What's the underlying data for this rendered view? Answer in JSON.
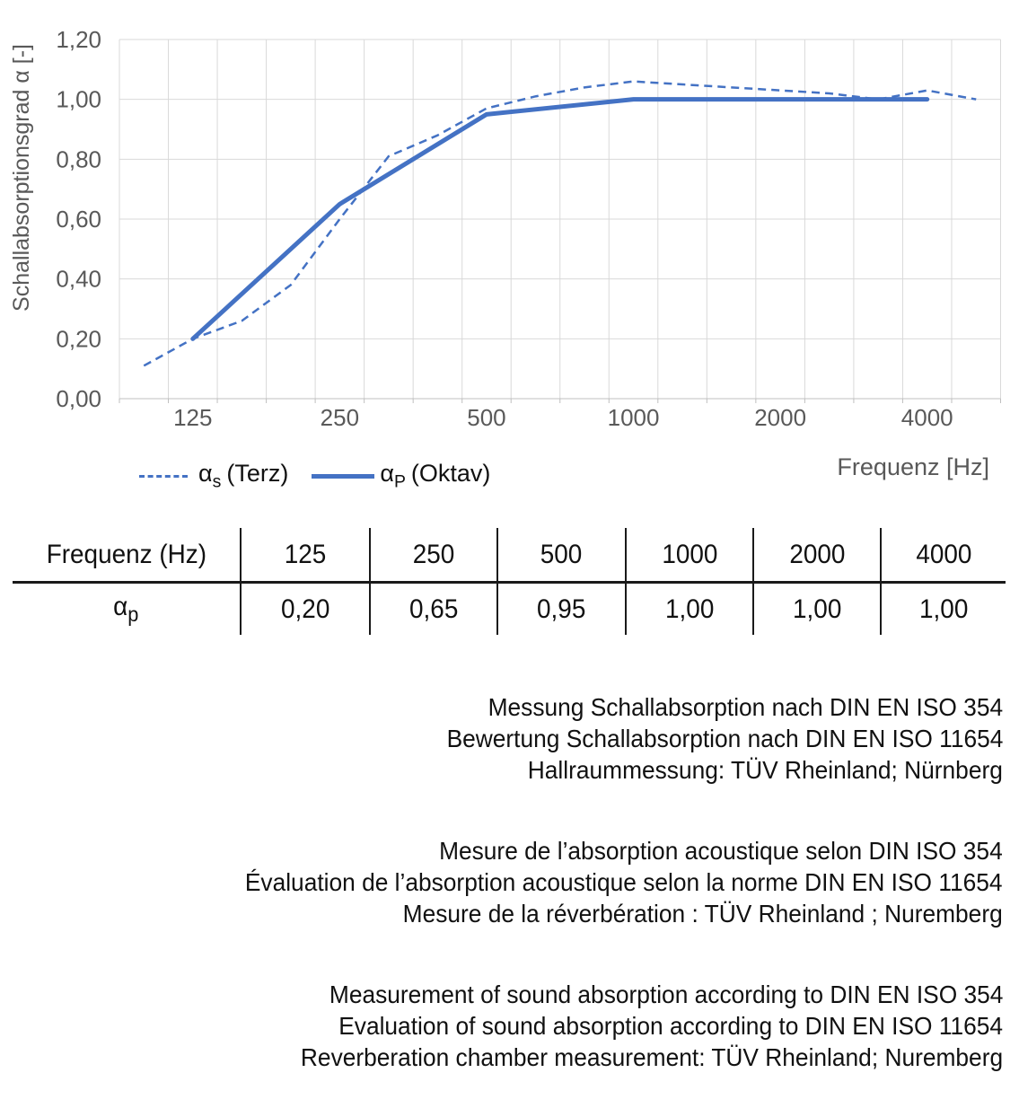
{
  "chart_data": {
    "type": "line",
    "title": "",
    "xlabel": "Frequenz [Hz]",
    "ylabel": "Schallabsorptionsgrad α [-]",
    "x_axis_kind": "third-octave category axis",
    "categories": [
      100,
      125,
      160,
      200,
      250,
      315,
      400,
      500,
      630,
      800,
      1000,
      1250,
      1600,
      2000,
      2500,
      3150,
      4000,
      5000
    ],
    "series": [
      {
        "name": "αs (Terz)",
        "style": "dashed",
        "x": [
          100,
          125,
          160,
          200,
          250,
          315,
          400,
          500,
          630,
          800,
          1000,
          1250,
          1600,
          2000,
          2500,
          3150,
          4000,
          5000
        ],
        "values": [
          0.11,
          0.2,
          0.26,
          0.38,
          0.6,
          0.81,
          0.88,
          0.97,
          1.01,
          1.04,
          1.06,
          1.05,
          1.04,
          1.03,
          1.02,
          1.0,
          1.03,
          1.0
        ]
      },
      {
        "name": "αP (Oktav)",
        "style": "solid",
        "x": [
          125,
          250,
          500,
          1000,
          2000,
          4000
        ],
        "values": [
          0.2,
          0.65,
          0.95,
          1.0,
          1.0,
          1.0
        ]
      }
    ],
    "ylim": [
      0.0,
      1.2
    ],
    "y_tick_step": 0.2,
    "y_ticks": [
      "0,00",
      "0,20",
      "0,40",
      "0,60",
      "0,80",
      "1,00",
      "1,20"
    ],
    "x_tick_labels": [
      "125",
      "250",
      "500",
      "1000",
      "2000",
      "4000"
    ],
    "x_tick_values": [
      125,
      250,
      500,
      1000,
      2000,
      4000
    ],
    "grid": true,
    "legend_position": "below-left",
    "line_color": "#4472C4",
    "gridline_color": "#D9D9D9",
    "axis_line_color": "#BFBFBF",
    "axis_text_color": "#595959"
  },
  "axis": {
    "x_label": "Frequenz [Hz]",
    "y_label": "Schallabsorptionsgrad α [-]"
  },
  "legend": {
    "series1": {
      "symbol": "α",
      "sub": "s",
      "label": "(Terz)"
    },
    "series2": {
      "symbol": "α",
      "sub": "P",
      "label": "(Oktav)"
    }
  },
  "table": {
    "header_label": "Frequenz (Hz)",
    "columns": [
      "125",
      "250",
      "500",
      "1000",
      "2000",
      "4000"
    ],
    "row_symbol": "α",
    "row_sub": "p",
    "values": [
      "0,20",
      "0,65",
      "0,95",
      "1,00",
      "1,00",
      "1,00"
    ]
  },
  "notes": {
    "de": [
      "Messung Schallabsorption nach DIN EN ISO 354",
      "Bewertung Schallabsorption nach DIN EN ISO 11654",
      "Hallraummessung: TÜV Rheinland; Nürnberg"
    ],
    "fr": [
      "Mesure de l’absorption acoustique selon DIN ISO 354",
      "Évaluation de l’absorption acoustique selon la norme DIN EN ISO 11654",
      "Mesure de la réverbération : TÜV Rheinland ; Nuremberg"
    ],
    "en": [
      "Measurement of sound absorption according to DIN EN ISO 354",
      "Evaluation of sound absorption according to DIN EN ISO 11654",
      "Reverberation chamber measurement: TÜV Rheinland; Nuremberg"
    ]
  }
}
